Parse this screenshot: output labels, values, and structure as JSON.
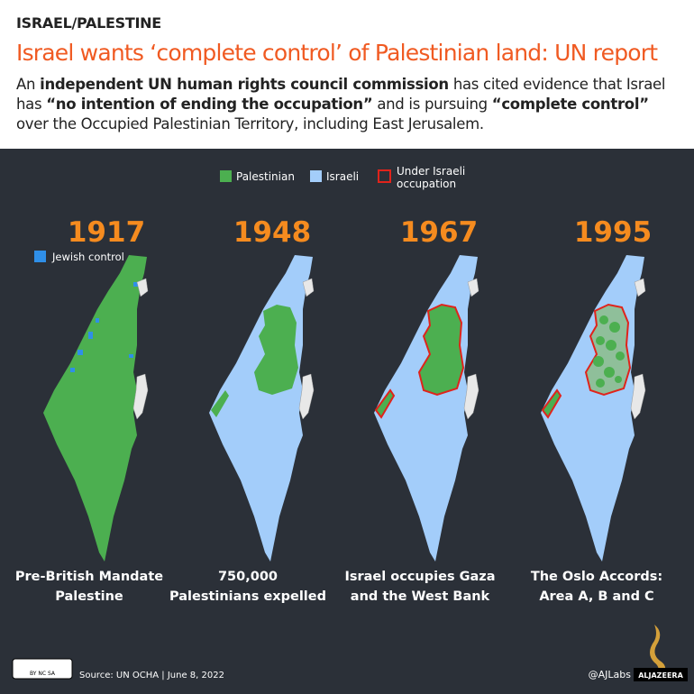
{
  "header": {
    "kicker": "ISRAEL/PALESTINE",
    "title": "Israel wants ‘complete control’ of Palestinian land: UN report",
    "subtitle": [
      "An ",
      "independent UN human rights council commission",
      " has cited evidence that Israel has ",
      "“no intention of ending the occupation”",
      " and is pursuing ",
      "“complete control”",
      " over the Occupied Palestinian Territory, including East Jerusalem."
    ]
  },
  "legend": [
    "Palestinian",
    "Israeli",
    "Under Israeli occupation"
  ],
  "panels": [
    {
      "year": "1917",
      "note": "Jewish control",
      "caption": [
        "Pre-British Mandate",
        "Palestine"
      ]
    },
    {
      "year": "1948",
      "caption": [
        "750,000",
        "Palestinians expelled"
      ]
    },
    {
      "year": "1967",
      "caption": [
        "Israel occupies Gaza",
        "and the West Bank"
      ]
    },
    {
      "year": "1995",
      "caption": [
        "The Oslo Accords:",
        "Area A, B and C"
      ]
    }
  ],
  "footer": {
    "license": "BY NC SA",
    "source": "Source: UN OCHA | June 8, 2022",
    "credit": "@AJLabs",
    "brand": "ALJAZEERA"
  }
}
